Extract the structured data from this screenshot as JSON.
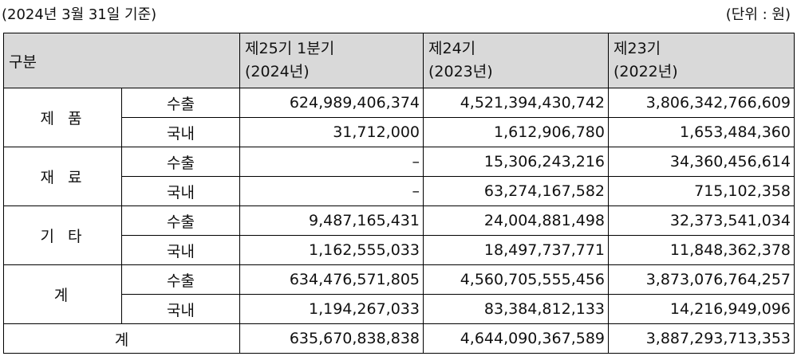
{
  "caption": {
    "date_note": "(2024년 3월 31일 기준)",
    "unit_note": "(단위 : 원)"
  },
  "header": {
    "category": "구분",
    "periods": [
      {
        "name": "제25기 1분기",
        "year": "(2024년)"
      },
      {
        "name": "제24기",
        "year": "(2023년)"
      },
      {
        "name": "제23기",
        "year": "(2022년)"
      }
    ]
  },
  "groups": [
    {
      "label": "제품",
      "rows": [
        {
          "sub": "수출",
          "values": [
            "624,989,406,374",
            "4,521,394,430,742",
            "3,806,342,766,609"
          ]
        },
        {
          "sub": "국내",
          "values": [
            "31,712,000",
            "1,612,906,780",
            "1,653,484,360"
          ]
        }
      ]
    },
    {
      "label": "재료",
      "rows": [
        {
          "sub": "수출",
          "values": [
            "–",
            "15,306,243,216",
            "34,360,456,614"
          ]
        },
        {
          "sub": "국내",
          "values": [
            "–",
            "63,274,167,582",
            "715,102,358"
          ]
        }
      ]
    },
    {
      "label": "기타",
      "rows": [
        {
          "sub": "수출",
          "values": [
            "9,487,165,431",
            "24,004,881,498",
            "32,373,541,034"
          ]
        },
        {
          "sub": "국내",
          "values": [
            "1,162,555,033",
            "18,497,737,771",
            "11,848,362,378"
          ]
        }
      ]
    },
    {
      "label": "계",
      "rows": [
        {
          "sub": "수출",
          "values": [
            "634,476,571,805",
            "4,560,705,555,456",
            "3,873,076,764,257"
          ]
        },
        {
          "sub": "국내",
          "values": [
            "1,194,267,033",
            "83,384,812,133",
            "14,216,949,096"
          ]
        }
      ]
    }
  ],
  "total": {
    "label": "계",
    "values": [
      "635,670,838,838",
      "4,644,090,367,589",
      "3,887,293,713,353"
    ]
  }
}
